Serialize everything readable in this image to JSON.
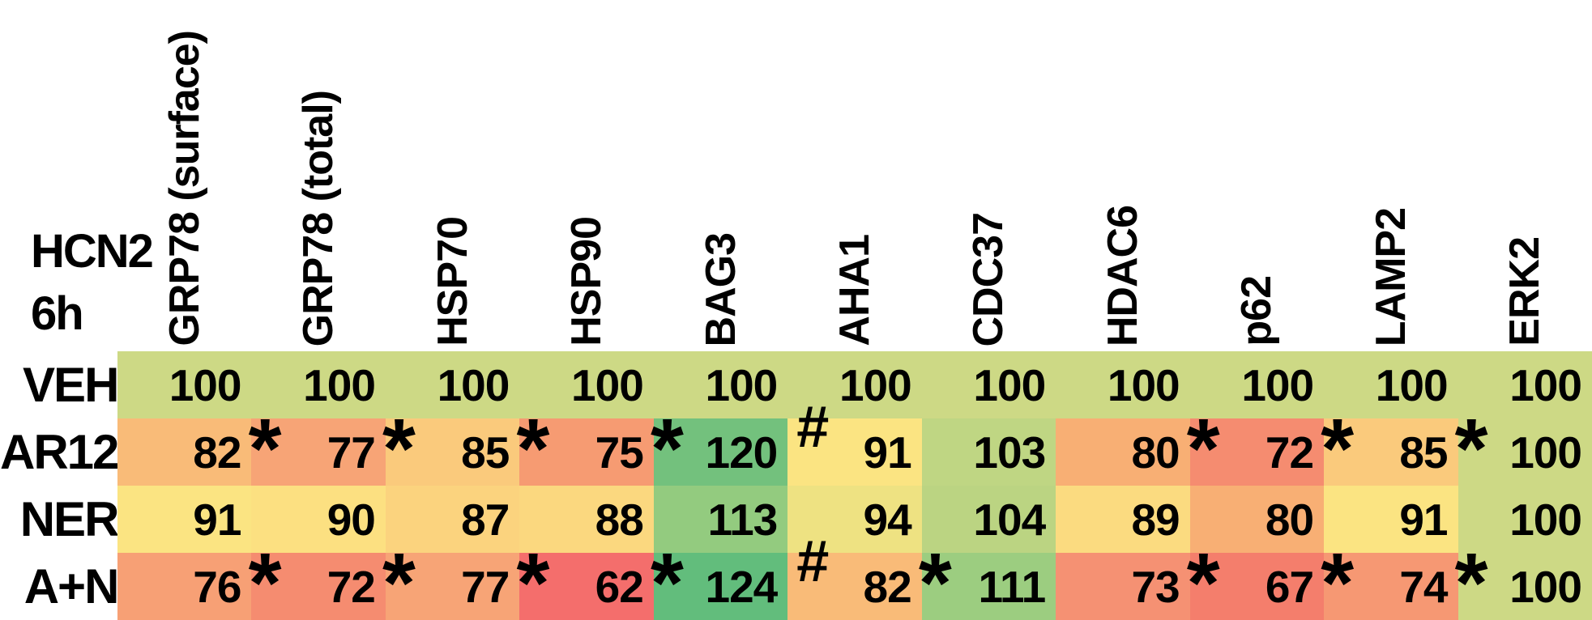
{
  "title": {
    "line1": "HCN2",
    "line2": "6h"
  },
  "columns": [
    "GRP78 (surface)",
    "GRP78 (total)",
    "HSP70",
    "HSP90",
    "BAG3",
    "AHA1",
    "CDC37",
    "HDAC6",
    "p62",
    "LAMP2",
    "ERK2"
  ],
  "rows": [
    {
      "label": "VEH",
      "cells": [
        {
          "value": "100",
          "marker": "",
          "color": "#CDD985"
        },
        {
          "value": "100",
          "marker": "",
          "color": "#CDD985"
        },
        {
          "value": "100",
          "marker": "",
          "color": "#CDD985"
        },
        {
          "value": "100",
          "marker": "",
          "color": "#CDD985"
        },
        {
          "value": "100",
          "marker": "",
          "color": "#CDD985"
        },
        {
          "value": "100",
          "marker": "",
          "color": "#CDD985"
        },
        {
          "value": "100",
          "marker": "",
          "color": "#CDD985"
        },
        {
          "value": "100",
          "marker": "",
          "color": "#CDD985"
        },
        {
          "value": "100",
          "marker": "",
          "color": "#CDD985"
        },
        {
          "value": "100",
          "marker": "",
          "color": "#CDD985"
        },
        {
          "value": "100",
          "marker": "",
          "color": "#CDD985"
        }
      ]
    },
    {
      "label": "AR12",
      "cells": [
        {
          "value": "82",
          "marker": "*",
          "color": "#F9BB78"
        },
        {
          "value": "77",
          "marker": "*",
          "color": "#F7A476"
        },
        {
          "value": "85",
          "marker": "*",
          "color": "#FACA7C"
        },
        {
          "value": "75",
          "marker": "*",
          "color": "#F69B72"
        },
        {
          "value": "120",
          "marker": "#",
          "color": "#73C17D"
        },
        {
          "value": "91",
          "marker": "",
          "color": "#FBE482"
        },
        {
          "value": "103",
          "marker": "",
          "color": "#BFD683"
        },
        {
          "value": "80",
          "marker": "*",
          "color": "#F8AF74"
        },
        {
          "value": "72",
          "marker": "*",
          "color": "#F58C70"
        },
        {
          "value": "85",
          "marker": "*",
          "color": "#FACA7C"
        },
        {
          "value": "100",
          "marker": "",
          "color": "#CDD985"
        }
      ]
    },
    {
      "label": "NER",
      "cells": [
        {
          "value": "91",
          "marker": "",
          "color": "#FBE482"
        },
        {
          "value": "90",
          "marker": "",
          "color": "#FCE081"
        },
        {
          "value": "87",
          "marker": "",
          "color": "#FBD37E"
        },
        {
          "value": "88",
          "marker": "",
          "color": "#FBD87F"
        },
        {
          "value": "113",
          "marker": "",
          "color": "#93CB7F"
        },
        {
          "value": "94",
          "marker": "",
          "color": "#EEE282"
        },
        {
          "value": "104",
          "marker": "",
          "color": "#BBD482"
        },
        {
          "value": "89",
          "marker": "",
          "color": "#FBDB80"
        },
        {
          "value": "80",
          "marker": "",
          "color": "#F8AF74"
        },
        {
          "value": "91",
          "marker": "",
          "color": "#FBE482"
        },
        {
          "value": "100",
          "marker": "",
          "color": "#CDD985"
        }
      ]
    },
    {
      "label": "A+N",
      "cells": [
        {
          "value": "76",
          "marker": "*",
          "color": "#F7A075"
        },
        {
          "value": "72",
          "marker": "*",
          "color": "#F58C70"
        },
        {
          "value": "77",
          "marker": "*",
          "color": "#F7A476"
        },
        {
          "value": "62",
          "marker": "*",
          "color": "#F46E6C"
        },
        {
          "value": "124",
          "marker": "#",
          "color": "#62BD7C"
        },
        {
          "value": "82",
          "marker": "*",
          "color": "#F9BB78"
        },
        {
          "value": "111",
          "marker": "",
          "color": "#9CCD80"
        },
        {
          "value": "73",
          "marker": "*",
          "color": "#F59173"
        },
        {
          "value": "67",
          "marker": "*",
          "color": "#F47E6C"
        },
        {
          "value": "74",
          "marker": "*",
          "color": "#F69873"
        },
        {
          "value": "100",
          "marker": "",
          "color": "#CDD985"
        }
      ]
    }
  ],
  "chart_data": {
    "type": "heatmap",
    "title": "HCN2 6h",
    "columns": [
      "GRP78 (surface)",
      "GRP78 (total)",
      "HSP70",
      "HSP90",
      "BAG3",
      "AHA1",
      "CDC37",
      "HDAC6",
      "p62",
      "LAMP2",
      "ERK2"
    ],
    "row_categories": [
      "VEH",
      "AR12",
      "NER",
      "A+N"
    ],
    "series": [
      {
        "name": "VEH",
        "values": [
          100,
          100,
          100,
          100,
          100,
          100,
          100,
          100,
          100,
          100,
          100
        ],
        "markers": [
          "",
          "",
          "",
          "",
          "",
          "",
          "",
          "",
          "",
          "",
          ""
        ]
      },
      {
        "name": "AR12",
        "values": [
          82,
          77,
          85,
          75,
          120,
          91,
          103,
          80,
          72,
          85,
          100
        ],
        "markers": [
          "*",
          "*",
          "*",
          "*",
          "#",
          "",
          "",
          "*",
          "*",
          "*",
          ""
        ]
      },
      {
        "name": "NER",
        "values": [
          91,
          90,
          87,
          88,
          113,
          94,
          104,
          89,
          80,
          91,
          100
        ],
        "markers": [
          "",
          "",
          "",
          "",
          "",
          "",
          "",
          "",
          "",
          "",
          ""
        ]
      },
      {
        "name": "A+N",
        "values": [
          76,
          72,
          77,
          62,
          124,
          82,
          111,
          73,
          67,
          74,
          100
        ],
        "markers": [
          "*",
          "*",
          "*",
          "*",
          "#",
          "*",
          "",
          "*",
          "*",
          "*",
          ""
        ]
      }
    ],
    "color_scale": {
      "low_color": "#F8696B",
      "mid_color": "#FFEB84",
      "high_color": "#63BE7B",
      "low_value": 62,
      "mid_value": 91,
      "high_value": 124
    },
    "grid": false,
    "legend_position": "none"
  }
}
